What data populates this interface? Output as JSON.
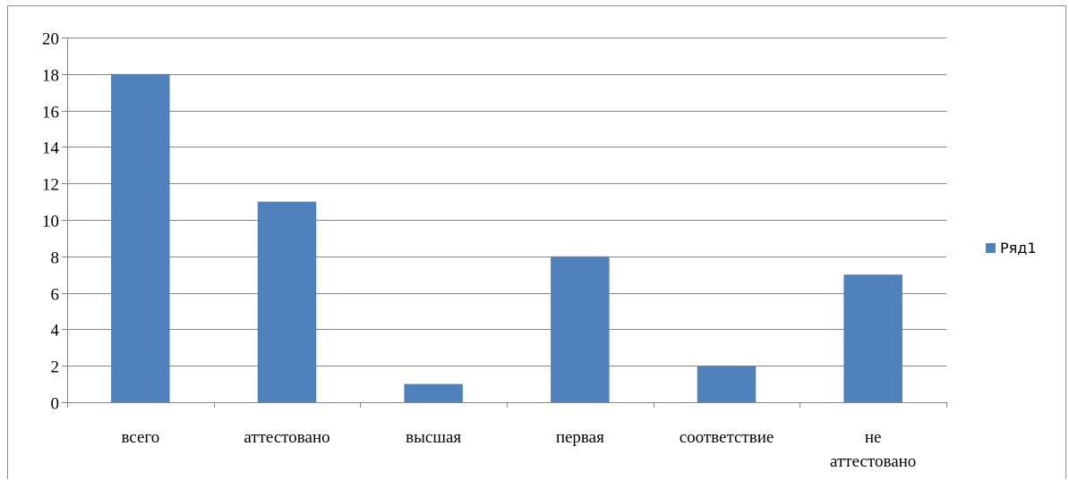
{
  "chart_data": {
    "type": "bar",
    "categories": [
      "всего",
      "аттестовано",
      "высшая",
      "первая",
      "соответствие",
      "не аттестовано"
    ],
    "category_lines": [
      [
        "всего"
      ],
      [
        "аттестовано"
      ],
      [
        "высшая"
      ],
      [
        "первая"
      ],
      [
        "соответствие"
      ],
      [
        "не",
        "аттестовано"
      ]
    ],
    "series": [
      {
        "name": "Ряд1",
        "values": [
          18,
          11,
          1,
          8,
          2,
          7
        ],
        "color": "#4f81bd"
      }
    ],
    "ylim": [
      0,
      20
    ],
    "yticks": [
      0,
      2,
      4,
      6,
      8,
      10,
      12,
      14,
      16,
      18,
      20
    ],
    "grid": true,
    "legend_position": "right",
    "title": "",
    "xlabel": "",
    "ylabel": ""
  },
  "colors": {
    "gridline": "#868686",
    "axis": "#868686",
    "frame": "#8c8c8c"
  }
}
